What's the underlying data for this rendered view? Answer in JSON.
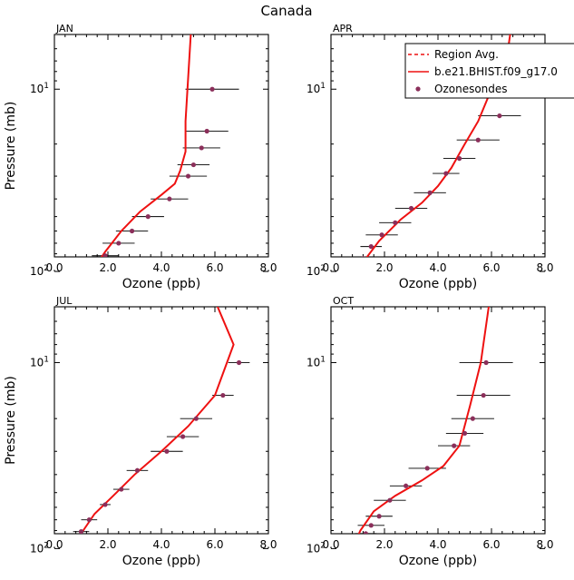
{
  "figure": {
    "title": "Canada"
  },
  "colors": {
    "model": "#ee1111",
    "obs_marker": "#8b2f5a",
    "axis": "#000000",
    "errorbar": "#000000"
  },
  "legend": {
    "placement": "top-right of APR panel",
    "entries": [
      {
        "label": "Region Avg.",
        "style": "dashed",
        "color": "#ee1111"
      },
      {
        "label": "b.e21.BHIST.f09_g17.0",
        "style": "solid",
        "color": "#ee1111"
      },
      {
        "label": "Ozonesondes",
        "style": "marker",
        "color": "#8b2f5a"
      }
    ]
  },
  "chart_data": [
    {
      "type": "line",
      "panel_title": "JAN",
      "xlabel": "Ozone (ppb)",
      "ylabel": "Pressure (mb)",
      "xlim": [
        0,
        8
      ],
      "ylim_log10": [
        1.92,
        0.7
      ],
      "yscale": "log",
      "xticks": [
        "0.0",
        "2.0",
        "4.0",
        "6.0",
        "8.0"
      ],
      "yticks": [
        {
          "value": 10,
          "base": "10",
          "exp": "1"
        },
        {
          "value": 100,
          "base": "10",
          "exp": "2"
        }
      ],
      "model_line": [
        {
          "ozone": 5.1,
          "p": 5
        },
        {
          "ozone": 4.9,
          "p": 15
        },
        {
          "ozone": 4.9,
          "p": 22
        },
        {
          "ozone": 4.7,
          "p": 28
        },
        {
          "ozone": 4.5,
          "p": 33
        },
        {
          "ozone": 4.0,
          "p": 38
        },
        {
          "ozone": 3.2,
          "p": 47
        },
        {
          "ozone": 2.5,
          "p": 60
        },
        {
          "ozone": 1.9,
          "p": 78
        },
        {
          "ozone": 1.5,
          "p": 95
        },
        {
          "ozone": 1.2,
          "p": 115
        },
        {
          "ozone": 1.0,
          "p": 130
        }
      ],
      "ozonesondes": [
        {
          "ozone": 5.9,
          "p": 10,
          "err": 1.0
        },
        {
          "ozone": 5.7,
          "p": 17,
          "err": 0.8
        },
        {
          "ozone": 5.5,
          "p": 21,
          "err": 0.7
        },
        {
          "ozone": 5.2,
          "p": 26,
          "err": 0.6
        },
        {
          "ozone": 5.0,
          "p": 30,
          "err": 0.7
        },
        {
          "ozone": 4.3,
          "p": 40,
          "err": 0.7
        },
        {
          "ozone": 3.5,
          "p": 50,
          "err": 0.6
        },
        {
          "ozone": 2.9,
          "p": 60,
          "err": 0.6
        },
        {
          "ozone": 2.4,
          "p": 70,
          "err": 0.6
        },
        {
          "ozone": 1.9,
          "p": 82,
          "err": 0.5
        },
        {
          "ozone": 1.6,
          "p": 92,
          "err": 0.5
        },
        {
          "ozone": 1.3,
          "p": 103,
          "err": 0.5
        },
        {
          "ozone": 0.9,
          "p": 127,
          "err": 0.1
        }
      ]
    },
    {
      "type": "line",
      "panel_title": "APR",
      "xlabel": "Ozone (ppb)",
      "ylabel": "Pressure (mb)",
      "xlim": [
        0,
        8
      ],
      "ylim_log10": [
        1.92,
        0.7
      ],
      "yscale": "log",
      "xticks": [
        "0.0",
        "2.0",
        "4.0",
        "6.0",
        "8.0"
      ],
      "yticks": [
        {
          "value": 10,
          "base": "10",
          "exp": "1"
        },
        {
          "value": 100,
          "base": "10",
          "exp": "2"
        }
      ],
      "model_line": [
        {
          "ozone": 6.7,
          "p": 5
        },
        {
          "ozone": 6.5,
          "p": 8
        },
        {
          "ozone": 6.0,
          "p": 10
        },
        {
          "ozone": 5.5,
          "p": 15
        },
        {
          "ozone": 5.0,
          "p": 20
        },
        {
          "ozone": 4.5,
          "p": 27
        },
        {
          "ozone": 4.0,
          "p": 34
        },
        {
          "ozone": 3.4,
          "p": 42
        },
        {
          "ozone": 2.6,
          "p": 52
        },
        {
          "ozone": 1.8,
          "p": 68
        },
        {
          "ozone": 1.3,
          "p": 85
        },
        {
          "ozone": 1.0,
          "p": 105
        },
        {
          "ozone": 0.9,
          "p": 130
        }
      ],
      "ozonesondes": [
        {
          "ozone": 7.2,
          "p": 10,
          "err": 0.9
        },
        {
          "ozone": 6.3,
          "p": 14,
          "err": 0.8
        },
        {
          "ozone": 5.5,
          "p": 19,
          "err": 0.8
        },
        {
          "ozone": 4.8,
          "p": 24,
          "err": 0.6
        },
        {
          "ozone": 4.3,
          "p": 29,
          "err": 0.5
        },
        {
          "ozone": 3.7,
          "p": 37,
          "err": 0.6
        },
        {
          "ozone": 3.0,
          "p": 45,
          "err": 0.6
        },
        {
          "ozone": 2.4,
          "p": 54,
          "err": 0.6
        },
        {
          "ozone": 1.9,
          "p": 63,
          "err": 0.6
        },
        {
          "ozone": 1.5,
          "p": 73,
          "err": 0.4
        },
        {
          "ozone": 1.2,
          "p": 85,
          "err": 0.3
        },
        {
          "ozone": 1.1,
          "p": 97,
          "err": 0.3
        },
        {
          "ozone": 0.9,
          "p": 106,
          "err": 0.3
        },
        {
          "ozone": 0.8,
          "p": 125,
          "err": 0.1
        }
      ]
    },
    {
      "type": "line",
      "panel_title": "JUL",
      "xlabel": "Ozone (ppb)",
      "ylabel": "Pressure (mb)",
      "xlim": [
        0,
        8
      ],
      "ylim_log10": [
        1.92,
        0.7
      ],
      "yscale": "log",
      "xticks": [
        "0.0",
        "2.0",
        "4.0",
        "6.0",
        "8.0"
      ],
      "yticks": [
        {
          "value": 10,
          "base": "10",
          "exp": "1"
        },
        {
          "value": 100,
          "base": "10",
          "exp": "2"
        }
      ],
      "model_line": [
        {
          "ozone": 6.1,
          "p": 5
        },
        {
          "ozone": 6.7,
          "p": 8
        },
        {
          "ozone": 6.0,
          "p": 15
        },
        {
          "ozone": 5.0,
          "p": 22
        },
        {
          "ozone": 4.0,
          "p": 30
        },
        {
          "ozone": 3.0,
          "p": 40
        },
        {
          "ozone": 2.2,
          "p": 52
        },
        {
          "ozone": 1.5,
          "p": 65
        },
        {
          "ozone": 1.0,
          "p": 83
        },
        {
          "ozone": 0.7,
          "p": 105
        },
        {
          "ozone": 0.6,
          "p": 130
        }
      ],
      "ozonesondes": [
        {
          "ozone": 6.9,
          "p": 10,
          "err": 0.4
        },
        {
          "ozone": 6.3,
          "p": 15,
          "err": 0.4
        },
        {
          "ozone": 5.3,
          "p": 20,
          "err": 0.6
        },
        {
          "ozone": 4.8,
          "p": 25,
          "err": 0.6
        },
        {
          "ozone": 4.2,
          "p": 30,
          "err": 0.6
        },
        {
          "ozone": 3.1,
          "p": 38,
          "err": 0.4
        },
        {
          "ozone": 2.5,
          "p": 48,
          "err": 0.3
        },
        {
          "ozone": 1.9,
          "p": 58,
          "err": 0.2
        },
        {
          "ozone": 1.3,
          "p": 70,
          "err": 0.3
        },
        {
          "ozone": 1.0,
          "p": 81,
          "err": 0.3
        },
        {
          "ozone": 0.8,
          "p": 92,
          "err": 0.2
        },
        {
          "ozone": 0.6,
          "p": 103,
          "err": 0.1
        },
        {
          "ozone": 0.4,
          "p": 127,
          "err": 0.1
        }
      ]
    },
    {
      "type": "line",
      "panel_title": "OCT",
      "xlabel": "Ozone (ppb)",
      "ylabel": "Pressure (mb)",
      "xlim": [
        0,
        8
      ],
      "ylim_log10": [
        1.92,
        0.7
      ],
      "yscale": "log",
      "xticks": [
        "0.0",
        "2.0",
        "4.0",
        "6.0",
        "8.0"
      ],
      "yticks": [
        {
          "value": 10,
          "base": "10",
          "exp": "1"
        },
        {
          "value": 100,
          "base": "10",
          "exp": "2"
        }
      ],
      "model_line": [
        {
          "ozone": 5.9,
          "p": 5
        },
        {
          "ozone": 5.6,
          "p": 10
        },
        {
          "ozone": 5.2,
          "p": 17
        },
        {
          "ozone": 4.8,
          "p": 28
        },
        {
          "ozone": 4.2,
          "p": 36
        },
        {
          "ozone": 3.4,
          "p": 43
        },
        {
          "ozone": 2.4,
          "p": 52
        },
        {
          "ozone": 1.6,
          "p": 63
        },
        {
          "ozone": 1.1,
          "p": 80
        },
        {
          "ozone": 0.8,
          "p": 100
        },
        {
          "ozone": 0.5,
          "p": 130
        }
      ],
      "ozonesondes": [
        {
          "ozone": 5.8,
          "p": 10,
          "err": 1.0
        },
        {
          "ozone": 5.7,
          "p": 15,
          "err": 1.0
        },
        {
          "ozone": 5.3,
          "p": 20,
          "err": 0.8
        },
        {
          "ozone": 5.0,
          "p": 24,
          "err": 0.7
        },
        {
          "ozone": 4.6,
          "p": 28,
          "err": 0.6
        },
        {
          "ozone": 3.6,
          "p": 37,
          "err": 0.7
        },
        {
          "ozone": 2.8,
          "p": 46,
          "err": 0.6
        },
        {
          "ozone": 2.2,
          "p": 55,
          "err": 0.6
        },
        {
          "ozone": 1.8,
          "p": 67,
          "err": 0.5
        },
        {
          "ozone": 1.5,
          "p": 75,
          "err": 0.5
        },
        {
          "ozone": 1.3,
          "p": 83,
          "err": 0.4
        },
        {
          "ozone": 1.1,
          "p": 90,
          "err": 0.4
        },
        {
          "ozone": 0.9,
          "p": 103,
          "err": 0.3
        },
        {
          "ozone": 0.8,
          "p": 125,
          "err": 0.1
        }
      ]
    }
  ]
}
